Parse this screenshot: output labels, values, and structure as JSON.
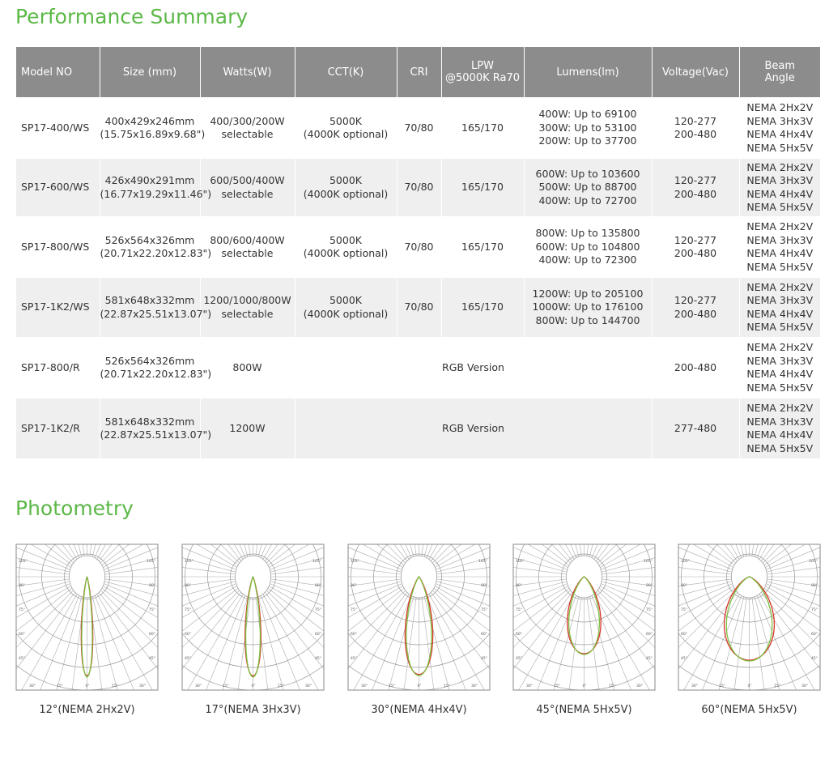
{
  "header": {
    "title": "Performance Summary"
  },
  "table": {
    "headers": [
      "Model NO",
      "Size (mm)",
      "Watts(W)",
      "CCT(K)",
      "CRI",
      "LPW\n@5000K Ra70",
      "Lumens(lm)",
      "Voltage(Vac)",
      "Beam\nAngle"
    ],
    "rows": [
      [
        "SP17-400/WS",
        "400x429x246mm\n(15.75x16.89x9.68\")",
        "400/300/200W\nselectable",
        "5000K\n(4000K optional)",
        "70/80",
        "165/170",
        "400W: Up to 69100\n300W: Up to 53100\n200W: Up to 37700",
        "120-277\n200-480",
        "NEMA 2Hx2V\nNEMA 3Hx3V\nNEMA 4Hx4V\nNEMA 5Hx5V"
      ],
      [
        "SP17-600/WS",
        "426x490x291mm\n(16.77x19.29x11.46\")",
        "600/500/400W\nselectable",
        "5000K\n(4000K optional)",
        "70/80",
        "165/170",
        "600W: Up to 103600\n500W: Up to 88700\n400W: Up to 72700",
        "120-277\n200-480",
        "NEMA 2Hx2V\nNEMA 3Hx3V\nNEMA 4Hx4V\nNEMA 5Hx5V"
      ],
      [
        "SP17-800/WS",
        "526x564x326mm\n(20.71x22.20x12.83\")",
        "800/600/400W\nselectable",
        "5000K\n(4000K optional)",
        "70/80",
        "165/170",
        "800W: Up to 135800\n600W: Up to 104800\n400W: Up to 72300",
        "120-277\n200-480",
        "NEMA 2Hx2V\nNEMA 3Hx3V\nNEMA 4Hx4V\nNEMA 5Hx5V"
      ],
      [
        "SP17-1K2/WS",
        "581x648x332mm\n(22.87x25.51x13.07\")",
        "1200/1000/800W\nselectable",
        "5000K\n(4000K optional)",
        "70/80",
        "165/170",
        "1200W: Up to 205100\n1000W: Up to 176100\n800W: Up to 144700",
        "120-277\n200-480",
        "NEMA 2Hx2V\nNEMA 3Hx3V\nNEMA 4Hx4V\nNEMA 5Hx5V"
      ],
      [
        "SP17-800/R",
        "526x564x326mm\n(20.71x22.20x12.83\")",
        "800W",
        "RGB Version",
        "200-480",
        "NEMA 2Hx2V\nNEMA 3Hx3V\nNEMA 4Hx4V\nNEMA 5Hx5V"
      ],
      [
        "SP17-1K2/R",
        "581x648x332mm\n(22.87x25.51x13.07\")",
        "1200W",
        "RGB Version",
        "277-480",
        "NEMA 2Hx2V\nNEMA 3Hx3V\nNEMA 4Hx4V\nNEMA 5Hx5V"
      ]
    ]
  },
  "photometry": {
    "title": "Photometry",
    "side_labels": [
      "105°",
      "90°",
      "75°",
      "60°",
      "45°"
    ],
    "bottom_labels": [
      "30°",
      "15°",
      "0°",
      "15°",
      "30°"
    ],
    "captions": [
      "12°(NEMA 2Hx2V)",
      "17°(NEMA 3Hx3V)",
      "30°(NEMA 4Hx4V)",
      "45°(NEMA 5Hx5V)",
      "60°(NEMA 5Hx5V)"
    ]
  }
}
